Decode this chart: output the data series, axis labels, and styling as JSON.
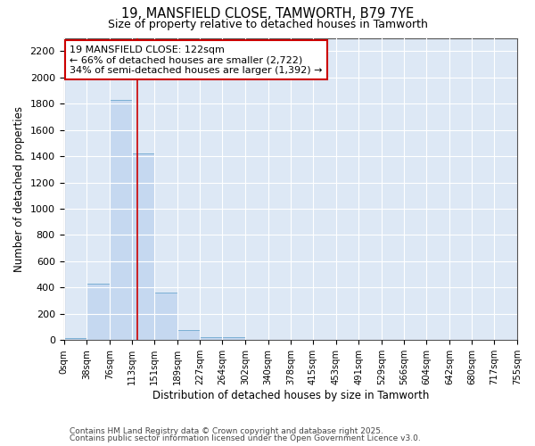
{
  "title1": "19, MANSFIELD CLOSE, TAMWORTH, B79 7YE",
  "title2": "Size of property relative to detached houses in Tamworth",
  "xlabel": "Distribution of detached houses by size in Tamworth",
  "ylabel": "Number of detached properties",
  "bin_labels": [
    "0sqm",
    "38sqm",
    "76sqm",
    "113sqm",
    "151sqm",
    "189sqm",
    "227sqm",
    "264sqm",
    "302sqm",
    "340sqm",
    "378sqm",
    "415sqm",
    "453sqm",
    "491sqm",
    "529sqm",
    "566sqm",
    "604sqm",
    "642sqm",
    "680sqm",
    "717sqm",
    "755sqm"
  ],
  "bin_edges": [
    0,
    38,
    76,
    113,
    151,
    189,
    227,
    264,
    302,
    340,
    378,
    415,
    453,
    491,
    529,
    566,
    604,
    642,
    680,
    717,
    755
  ],
  "bar_heights": [
    15,
    430,
    1830,
    1420,
    360,
    80,
    25,
    20,
    0,
    0,
    0,
    0,
    0,
    0,
    0,
    0,
    0,
    0,
    0,
    0
  ],
  "bar_color": "#c5d8f0",
  "bar_edge_color": "#7bafd4",
  "property_size": 122,
  "vline_color": "#cc0000",
  "annotation_line1": "19 MANSFIELD CLOSE: 122sqm",
  "annotation_line2": "← 66% of detached houses are smaller (2,722)",
  "annotation_line3": "34% of semi-detached houses are larger (1,392) →",
  "annotation_box_color": "#cc0000",
  "ylim": [
    0,
    2300
  ],
  "yticks": [
    0,
    200,
    400,
    600,
    800,
    1000,
    1200,
    1400,
    1600,
    1800,
    2000,
    2200
  ],
  "background_color": "#dde8f5",
  "grid_color": "#ffffff",
  "footnote1": "Contains HM Land Registry data © Crown copyright and database right 2025.",
  "footnote2": "Contains public sector information licensed under the Open Government Licence v3.0."
}
